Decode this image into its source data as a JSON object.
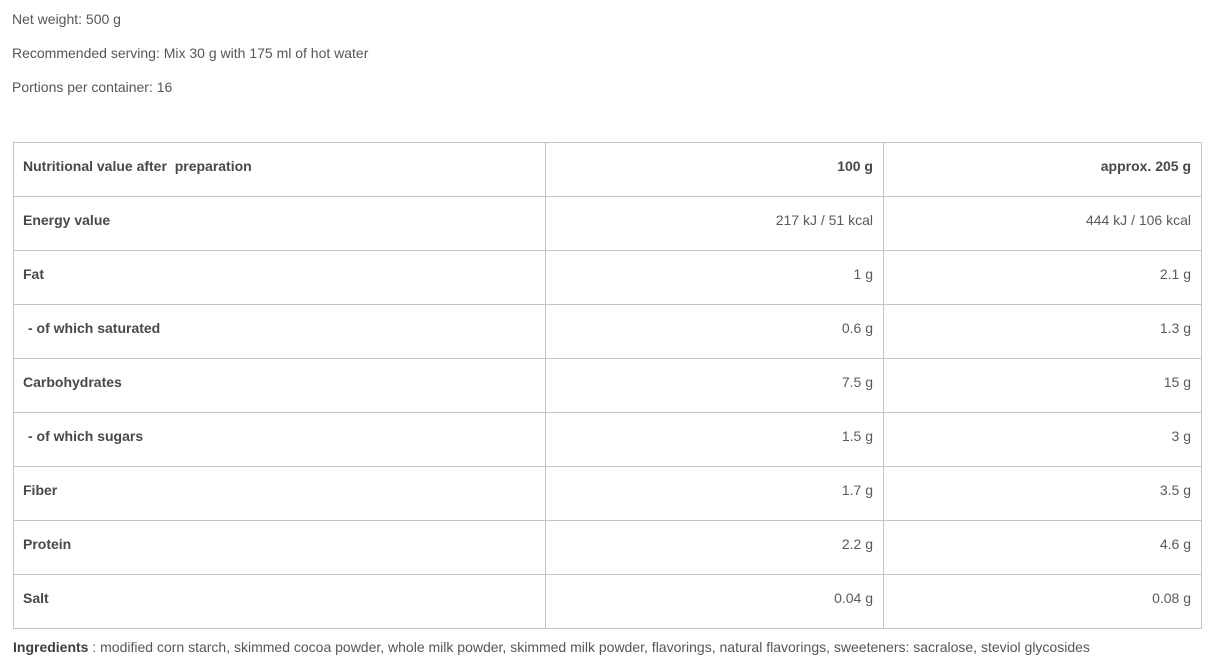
{
  "product_info": {
    "net_weight": "Net weight: 500 g",
    "recommended_serving": "Recommended serving: Mix 30 g with 175 ml of hot water",
    "portions_per_container": "Portions per container: 16"
  },
  "nutrition_table": {
    "header": {
      "label": "Nutritional value after  preparation",
      "col_100g": "100 g",
      "col_205g": "approx. 205 g"
    },
    "rows": [
      {
        "label": "Energy value",
        "per_100g": "217 kJ / 51 kcal",
        "per_205g": "444 kJ / 106 kcal"
      },
      {
        "label": "Fat",
        "per_100g": "1 g",
        "per_205g": "2.1 g"
      },
      {
        "label": "- of which saturated",
        "per_100g": "0.6 g",
        "per_205g": "1.3 g"
      },
      {
        "label": "Carbohydrates",
        "per_100g": "7.5 g",
        "per_205g": "15 g"
      },
      {
        "label": "- of which sugars",
        "per_100g": "1.5 g",
        "per_205g": "3 g"
      },
      {
        "label": "Fiber",
        "per_100g": "1.7 g",
        "per_205g": "3.5 g"
      },
      {
        "label": "Protein",
        "per_100g": "2.2 g",
        "per_205g": "4.6 g"
      },
      {
        "label": "Salt",
        "per_100g": "0.04 g",
        "per_205g": "0.08 g"
      }
    ]
  },
  "ingredients": {
    "label": "Ingredients",
    "text": " : modified corn starch, skimmed cocoa powder, whole milk powder, skimmed milk powder, flavorings, natural flavorings, sweeteners: sacralose, steviol glycosides"
  },
  "colors": {
    "border": "#c4c4c4",
    "text_bold": "#484848",
    "text_regular": "#5a5a5a"
  }
}
